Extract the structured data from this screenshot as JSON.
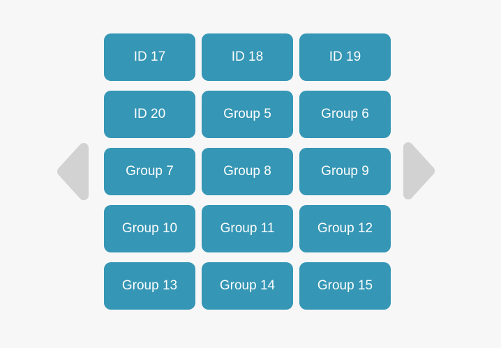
{
  "colors": {
    "background": "#f7f7f7",
    "button": "#3596b5",
    "button_text": "#fcfdfd",
    "arrow": "#d2d2d2"
  },
  "carousel": {
    "prev_icon": "left-triangle-arrow",
    "next_icon": "right-triangle-arrow",
    "buttons": [
      "ID 17",
      "ID 18",
      "ID 19",
      "ID 20",
      "Group 5",
      "Group 6",
      "Group 7",
      "Group 8",
      "Group 9",
      "Group 10",
      "Group 11",
      "Group 12",
      "Group 13",
      "Group 14",
      "Group 15"
    ]
  }
}
